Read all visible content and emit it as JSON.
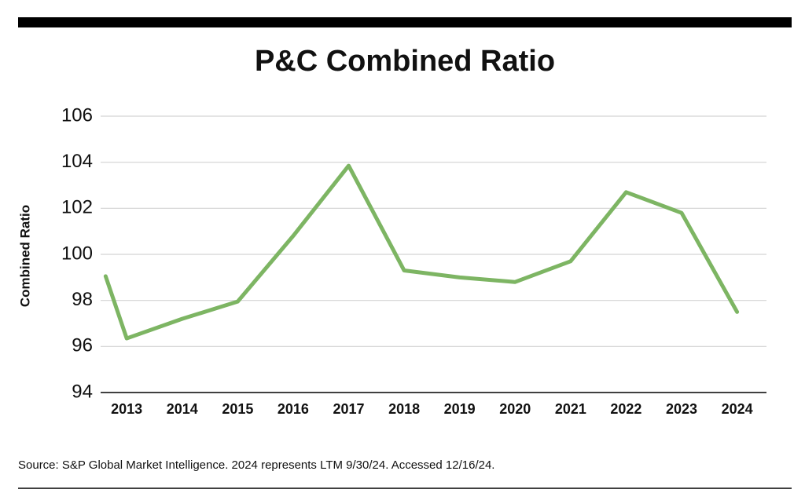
{
  "chart_data": {
    "type": "line",
    "title": "P&C Combined Ratio",
    "ylabel": "Combined Ratio",
    "source": "Source: S&P Global Market Intelligence. 2024 represents LTM 9/30/24. Accessed 12/16/24.",
    "x": [
      2012.62,
      2013,
      2014,
      2015,
      2016,
      2017,
      2018,
      2019,
      2020,
      2021,
      2022,
      2023,
      2024
    ],
    "values": [
      99.05,
      96.35,
      97.2,
      97.95,
      100.8,
      103.85,
      99.3,
      99.0,
      98.8,
      99.7,
      102.7,
      101.8,
      97.5
    ],
    "color": "#7db563",
    "xlim": [
      2012.53,
      2024.53
    ],
    "ylim": [
      94,
      106
    ],
    "xticks": [
      2013,
      2014,
      2015,
      2016,
      2017,
      2018,
      2019,
      2020,
      2021,
      2022,
      2023,
      2024
    ],
    "yticks": [
      94,
      96,
      98,
      100,
      102,
      104,
      106
    ],
    "grid": true
  }
}
